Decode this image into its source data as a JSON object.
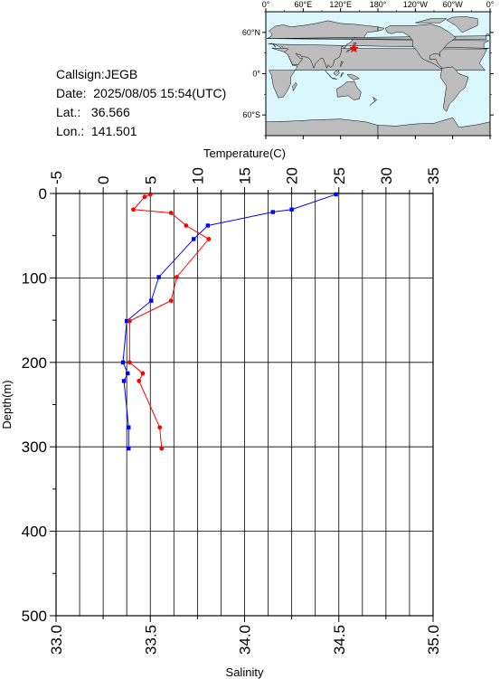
{
  "info": {
    "callsign": "Callsign:JEGB",
    "date": "Date:  2025/08/05 15:54(UTC)",
    "lat": "Lat.:   36.566",
    "lon": "Lon.:  141.501"
  },
  "map": {
    "top_labels": [
      "0°",
      "60°E",
      "120°E",
      "180°",
      "120°W",
      "60°W",
      "0°"
    ],
    "left_labels": [
      "60°N",
      "0°",
      "60°S"
    ],
    "ocean_color": "#d9f7fd",
    "land_color": "#bdbdbd",
    "marker": {
      "lat": 36.566,
      "lon": 141.501,
      "symbol": "star-icon",
      "color": "#ff0000"
    }
  },
  "chart_data": {
    "type": "line",
    "y_axis": {
      "label": "Depth(m)",
      "range": [
        0,
        500
      ],
      "ticks": [
        "0",
        "100",
        "200",
        "300",
        "400",
        "500"
      ],
      "inverted": true
    },
    "x_top": {
      "label": "Temperature(C)",
      "range": [
        -5,
        35
      ],
      "ticks": [
        "-5",
        "0",
        "5",
        "10",
        "15",
        "20",
        "25",
        "30",
        "35"
      ]
    },
    "x_bottom": {
      "label": "Salinity",
      "range": [
        33.0,
        35.0
      ],
      "ticks": [
        "33.0",
        "33.5",
        "34.0",
        "34.5",
        "35.0"
      ]
    },
    "grid": true,
    "series": [
      {
        "variable": "temperature",
        "axis": "top",
        "color": "#0000ff",
        "points": [
          {
            "t": 24.7,
            "d": 1
          },
          {
            "t": 20.0,
            "d": 19
          },
          {
            "t": 18.0,
            "d": 22
          },
          {
            "t": 11.1,
            "d": 38
          },
          {
            "t": 9.6,
            "d": 54
          },
          {
            "t": 5.9,
            "d": 99
          },
          {
            "t": 5.1,
            "d": 127
          },
          {
            "t": 2.5,
            "d": 151
          },
          {
            "t": 2.1,
            "d": 200
          },
          {
            "t": 2.6,
            "d": 213
          },
          {
            "t": 2.2,
            "d": 222
          },
          {
            "t": 2.7,
            "d": 277
          },
          {
            "t": 2.7,
            "d": 302
          }
        ]
      },
      {
        "variable": "salinity",
        "axis": "bottom",
        "color": "#ff0000",
        "points": [
          {
            "s": 33.5,
            "d": 1
          },
          {
            "s": 33.47,
            "d": 4
          },
          {
            "s": 33.41,
            "d": 19
          },
          {
            "s": 33.61,
            "d": 23
          },
          {
            "s": 33.69,
            "d": 38
          },
          {
            "s": 33.81,
            "d": 54
          },
          {
            "s": 33.64,
            "d": 99
          },
          {
            "s": 33.61,
            "d": 127
          },
          {
            "s": 33.39,
            "d": 151
          },
          {
            "s": 33.39,
            "d": 200
          },
          {
            "s": 33.46,
            "d": 213
          },
          {
            "s": 33.44,
            "d": 222
          },
          {
            "s": 33.55,
            "d": 277
          },
          {
            "s": 33.56,
            "d": 302
          }
        ]
      }
    ]
  }
}
